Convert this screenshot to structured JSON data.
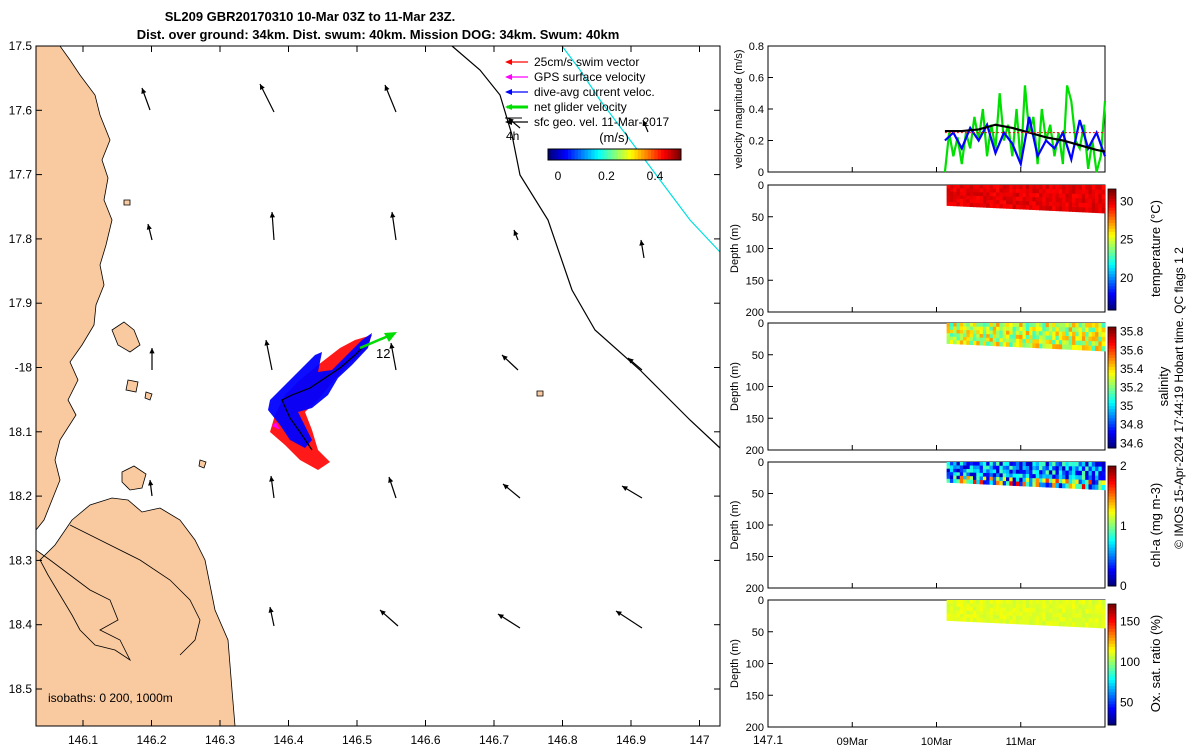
{
  "title": {
    "line1": "SL209 GBR20170310 10-Mar 03Z to 11-Mar 23Z.",
    "line2": "Dist. over ground: 34km. Dist. swum: 40km. Mission DOG: 34km. Swum: 40km"
  },
  "map": {
    "lon_ticks": [
      "146.1",
      "146.2",
      "146.3",
      "146.4",
      "146.5",
      "146.6",
      "146.7",
      "146.8",
      "146.9",
      "147",
      "147.1"
    ],
    "lat_ticks": [
      "17.5",
      "17.6",
      "17.7",
      "17.8",
      "17.9",
      "-18",
      "18.1",
      "18.2",
      "18.3",
      "18.4",
      "18.5"
    ],
    "isobaths_text": "isobaths: 0   200, 1000m",
    "legend": [
      {
        "label": "25cm/s swim vector",
        "color": "#ff0000"
      },
      {
        "label": "GPS surface velocity",
        "color": "#ff00ff"
      },
      {
        "label": "dive-avg current veloc.",
        "color": "#0000ff"
      },
      {
        "label": "net glider velocity",
        "color": "#00dd00"
      },
      {
        "label": "sfc geo. vel. 11-Mar-2017",
        "color": "#000000"
      }
    ],
    "scale_label": "4h",
    "colorbar_title": "(m/s)",
    "colorbar_ticks": [
      "0",
      "0.2",
      "0.4"
    ],
    "track_label": "12",
    "land_color": "#f9c99f"
  },
  "chart_data": [
    {
      "type": "line",
      "ylabel": "velocity magnitude (m/s)",
      "ylim": [
        0,
        0.8
      ],
      "yticks": [
        "0",
        "0.2",
        "0.4",
        "0.6",
        "0.8"
      ],
      "x_unit": "days since 08-Mar 00Z",
      "xlim": [
        0,
        4
      ],
      "series": [
        {
          "color": "#00e000",
          "x": [
            2.1,
            2.15,
            2.2,
            2.25,
            2.3,
            2.35,
            2.4,
            2.45,
            2.5,
            2.55,
            2.6,
            2.65,
            2.7,
            2.75,
            2.8,
            2.85,
            2.9,
            2.95,
            3.0,
            3.05,
            3.1,
            3.15,
            3.2,
            3.25,
            3.3,
            3.35,
            3.4,
            3.45,
            3.5,
            3.55,
            3.6,
            3.65,
            3.7,
            3.75,
            3.8,
            3.85,
            3.9,
            3.95,
            4.0
          ],
          "values": [
            0.0,
            0.25,
            0.1,
            0.22,
            0.05,
            0.25,
            0.15,
            0.35,
            0.2,
            0.4,
            0.1,
            0.3,
            0.15,
            0.5,
            0.2,
            0.3,
            0.1,
            0.4,
            0.05,
            0.55,
            0.25,
            0.35,
            0.05,
            0.4,
            0.2,
            0.3,
            0.1,
            0.25,
            0.05,
            0.55,
            0.45,
            0.2,
            0.15,
            0.3,
            0.02,
            0.2,
            0.0,
            0.1,
            0.45
          ]
        },
        {
          "color": "#0000ff",
          "x": [
            2.1,
            2.2,
            2.3,
            2.4,
            2.5,
            2.6,
            2.7,
            2.8,
            2.9,
            3.0,
            3.1,
            3.2,
            3.3,
            3.4,
            3.5,
            3.6,
            3.7,
            3.8,
            3.9,
            4.0
          ],
          "values": [
            0.2,
            0.25,
            0.15,
            0.28,
            0.2,
            0.3,
            0.12,
            0.25,
            0.18,
            0.05,
            0.35,
            0.1,
            0.2,
            0.15,
            0.25,
            0.08,
            0.33,
            0.15,
            0.25,
            0.1
          ]
        },
        {
          "color": "#000000",
          "x": [
            2.1,
            2.3,
            2.5,
            2.7,
            2.9,
            3.1,
            3.3,
            3.5,
            3.7,
            3.9,
            4.0
          ],
          "values": [
            0.26,
            0.26,
            0.27,
            0.3,
            0.28,
            0.25,
            0.22,
            0.2,
            0.17,
            0.14,
            0.13
          ]
        },
        {
          "color": "#ff0000",
          "x": [
            2.1,
            2.5,
            2.9,
            3.3,
            3.7,
            4.0
          ],
          "values": [
            0.25,
            0.25,
            0.25,
            0.25,
            0.25,
            0.25
          ]
        }
      ]
    },
    {
      "type": "heatmap",
      "ylabel": "Depth (m)",
      "ylim": [
        0,
        200
      ],
      "yticks": [
        "0",
        "50",
        "100",
        "150",
        "200"
      ],
      "colorbar_label": "temperature (°C)",
      "clim": [
        15.8,
        31.6
      ],
      "colorbar_ticks": [
        "20",
        "25",
        "30"
      ],
      "value_min": 29.5,
      "value_max": 30.5
    },
    {
      "type": "heatmap",
      "ylabel": "Depth (m)",
      "ylim": [
        0,
        200
      ],
      "yticks": [
        "0",
        "50",
        "100",
        "150",
        "200"
      ],
      "colorbar_label": "salinity",
      "clim": [
        34.55,
        35.85
      ],
      "colorbar_ticks": [
        "34.6",
        "34.8",
        "35",
        "35.2",
        "35.4",
        "35.6",
        "35.8"
      ],
      "value_min": 35.1,
      "value_max": 35.5
    },
    {
      "type": "heatmap",
      "ylabel": "Depth (m)",
      "ylim": [
        0,
        200
      ],
      "yticks": [
        "0",
        "50",
        "100",
        "150",
        "200"
      ],
      "colorbar_label": "chl-a (mg m-3)",
      "clim": [
        0,
        2
      ],
      "colorbar_ticks": [
        "0",
        "1",
        "2"
      ],
      "value_min": 0.1,
      "value_max": 1.8
    },
    {
      "type": "heatmap",
      "ylabel": "Depth (m)",
      "ylim": [
        0,
        200
      ],
      "yticks": [
        "0",
        "50",
        "100",
        "150",
        "200"
      ],
      "colorbar_label": "Ox. sat. ratio (%)",
      "clim": [
        22,
        172
      ],
      "colorbar_ticks": [
        "50",
        "100",
        "150"
      ],
      "value_min": 108,
      "value_max": 115
    }
  ],
  "time_axis": {
    "ticks": [
      "09Mar",
      "10Mar",
      "11Mar"
    ],
    "tick_days": [
      1,
      2,
      3
    ]
  },
  "credit": "© IMOS 15-Apr-2024 17:44:19 Hobart time. QC flags 1  2"
}
